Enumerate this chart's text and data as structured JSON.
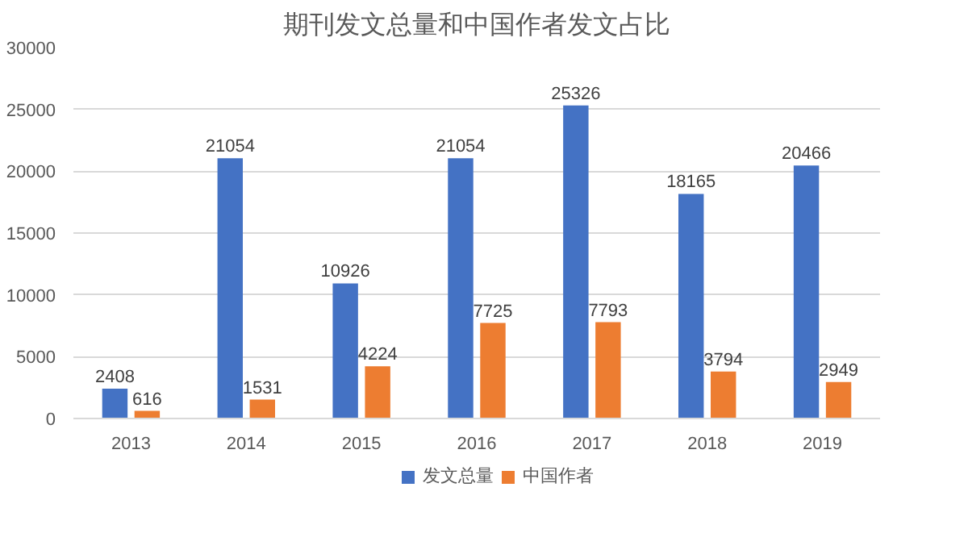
{
  "chart_data": {
    "type": "bar",
    "title": "期刊发文总量和中国作者发文占比",
    "categories": [
      "2013",
      "2014",
      "2015",
      "2016",
      "2017",
      "2018",
      "2019"
    ],
    "series": [
      {
        "name": "发文总量",
        "color": "#4472c4",
        "values": [
          2408,
          21054,
          10926,
          21054,
          25326,
          18165,
          20466
        ]
      },
      {
        "name": "中国作者",
        "color": "#ed7d31",
        "values": [
          616,
          1531,
          4224,
          7725,
          7793,
          3794,
          2949
        ]
      }
    ],
    "ylim": [
      0,
      30000
    ],
    "yticks": [
      0,
      5000,
      10000,
      15000,
      20000,
      25000,
      30000
    ],
    "grid": "y",
    "legend": "bottom",
    "data_labels": true
  }
}
